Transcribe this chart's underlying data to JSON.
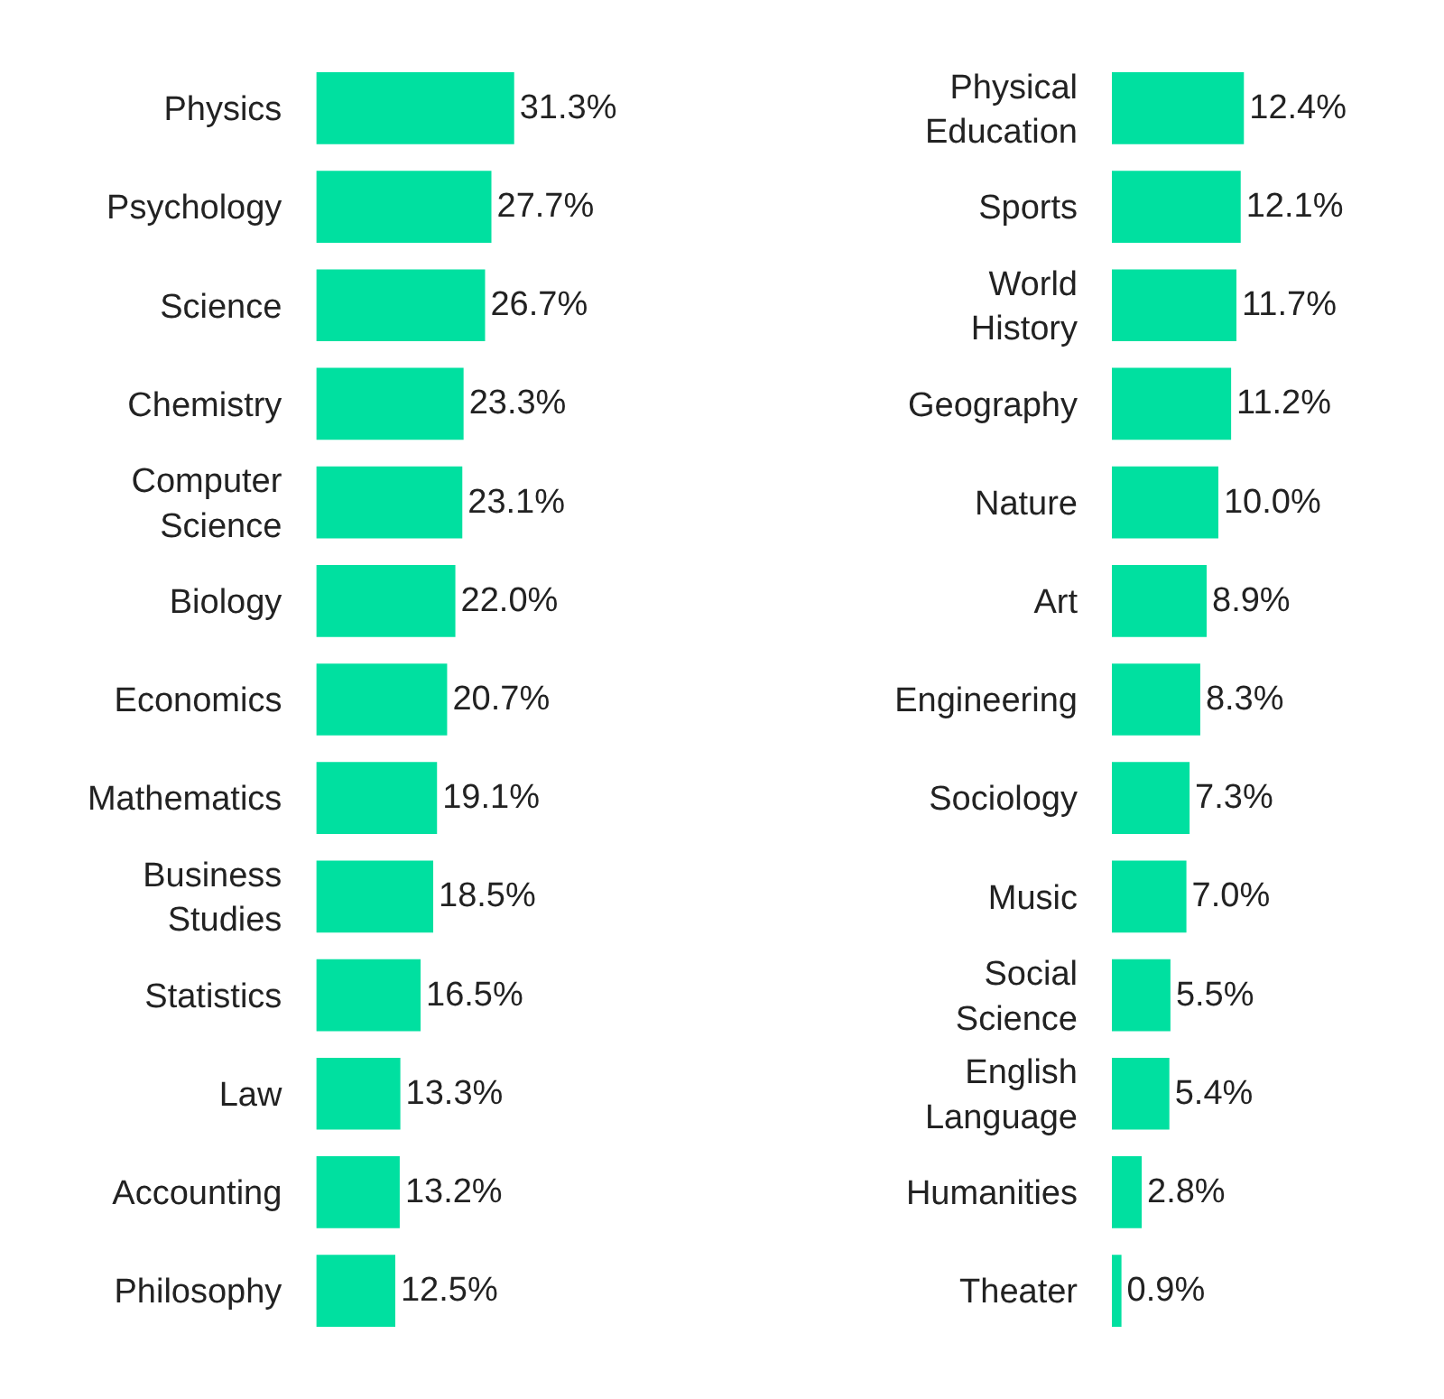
{
  "chart_data": [
    {
      "type": "bar",
      "orientation": "horizontal",
      "categories": [
        "Physics",
        "Psychology",
        "Science",
        "Chemistry",
        "Computer\nScience",
        "Biology",
        "Economics",
        "Mathematics",
        "Business\nStudies",
        "Statistics",
        "Law",
        "Accounting",
        "Philosophy"
      ],
      "values": [
        31.3,
        27.7,
        26.7,
        23.3,
        23.1,
        22.0,
        20.7,
        19.1,
        18.5,
        16.5,
        13.3,
        13.2,
        12.5
      ],
      "value_labels": [
        "31.3%",
        "27.7%",
        "26.7%",
        "23.3%",
        "23.1%",
        "22.0%",
        "20.7%",
        "19.1%",
        "18.5%",
        "16.5%",
        "13.3%",
        "13.2%",
        "12.5%"
      ],
      "color": "#00e0a0",
      "tick_labels": "y"
    },
    {
      "type": "bar",
      "orientation": "horizontal",
      "categories": [
        "Physical\nEducation",
        "Sports",
        "World\nHistory",
        "Geography",
        "Nature",
        "Art",
        "Engineering",
        "Sociology",
        "Music",
        "Social\nScience",
        "English\nLanguage",
        "Humanities",
        "Theater"
      ],
      "values": [
        12.4,
        12.1,
        11.7,
        11.2,
        10.0,
        8.9,
        8.3,
        7.3,
        7.0,
        5.5,
        5.4,
        2.8,
        0.9
      ],
      "value_labels": [
        "12.4%",
        "12.1%",
        "11.7%",
        "11.2%",
        "10.0%",
        "8.9%",
        "8.3%",
        "7.3%",
        "7.0%",
        "5.5%",
        "5.4%",
        "2.8%",
        "0.9%"
      ],
      "color": "#00e0a0",
      "tick_labels": "y"
    }
  ]
}
